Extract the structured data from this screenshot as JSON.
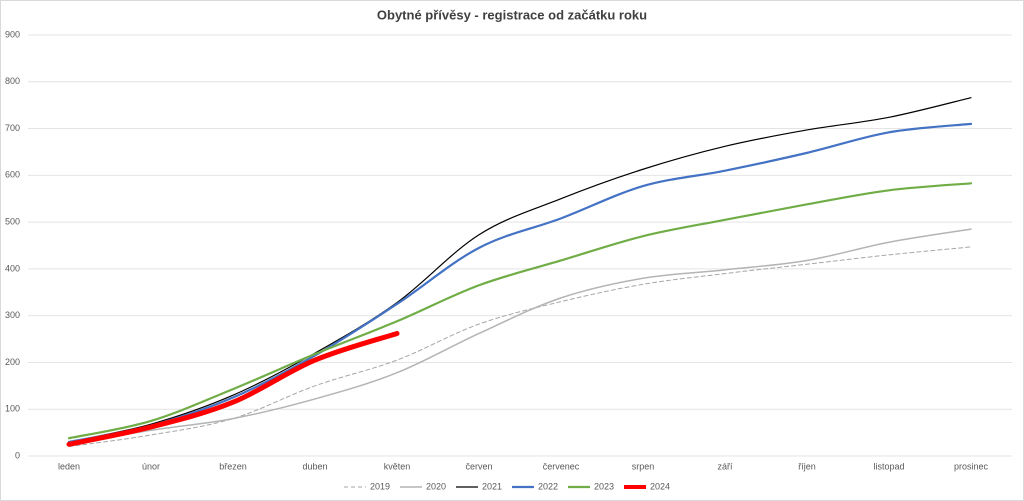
{
  "chart_data": {
    "type": "line",
    "title": "Obytné přívěsy - registrace od začátku roku",
    "categories": [
      "leden",
      "únor",
      "březen",
      "duben",
      "květen",
      "červen",
      "červenec",
      "srpen",
      "září",
      "říjen",
      "listopad",
      "prosinec"
    ],
    "series": [
      {
        "name": "2019",
        "color": "#a6a6a6",
        "dashed": true,
        "line_width": 1,
        "values": [
          20,
          45,
          80,
          150,
          205,
          282,
          330,
          367,
          390,
          410,
          430,
          447
        ]
      },
      {
        "name": "2020",
        "color": "#b4b4b4",
        "dashed": false,
        "line_width": 1.5,
        "values": [
          25,
          55,
          80,
          122,
          178,
          262,
          338,
          380,
          398,
          418,
          457,
          485
        ]
      },
      {
        "name": "2021",
        "color": "#000000",
        "dashed": false,
        "line_width": 1.2,
        "values": [
          30,
          68,
          130,
          220,
          328,
          473,
          550,
          613,
          662,
          697,
          724,
          766
        ]
      },
      {
        "name": "2022",
        "color": "#4472c4",
        "dashed": false,
        "line_width": 2.2,
        "values": [
          30,
          65,
          125,
          215,
          325,
          445,
          508,
          577,
          610,
          648,
          692,
          710
        ]
      },
      {
        "name": "2023",
        "color": "#70ad47",
        "dashed": false,
        "line_width": 2.2,
        "values": [
          38,
          75,
          143,
          218,
          288,
          365,
          418,
          470,
          505,
          538,
          568,
          583
        ]
      },
      {
        "name": "2024",
        "color": "#ff0000",
        "dashed": false,
        "line_width": 5,
        "values": [
          25,
          62,
          115,
          205,
          262,
          null,
          null,
          null,
          null,
          null,
          null,
          null
        ]
      }
    ],
    "ylim": [
      0,
      900
    ],
    "yticks": [
      0,
      100,
      200,
      300,
      400,
      500,
      600,
      700,
      800,
      900
    ],
    "grid": true,
    "legend": "bottom"
  }
}
